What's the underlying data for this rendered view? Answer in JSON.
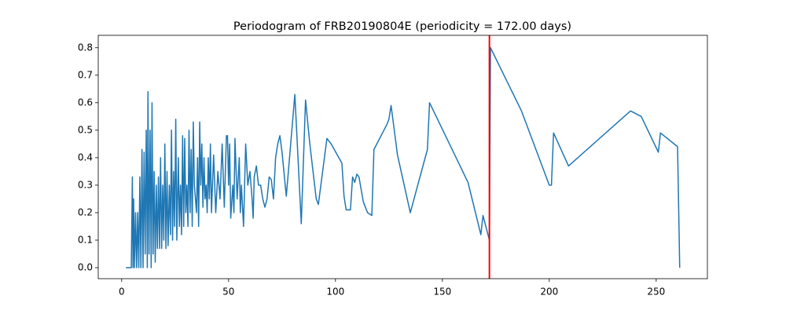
{
  "chart_data": {
    "type": "line",
    "title": "Periodogram of FRB20190804E (periodicity = 172.00 days)",
    "x": [
      2,
      4.5,
      5,
      5.3,
      5.6,
      6,
      6.5,
      7,
      7.5,
      8,
      8.5,
      9,
      9.5,
      10,
      10.5,
      11,
      11.5,
      12,
      12.3,
      12.8,
      13.3,
      13.8,
      14.2,
      14.7,
      15.2,
      15.7,
      16.2,
      16.7,
      17.2,
      17.7,
      18.2,
      18.7,
      19.2,
      19.7,
      20.2,
      20.7,
      21.2,
      21.7,
      22.3,
      22.8,
      23.3,
      23.8,
      24.3,
      24.8,
      25.3,
      25.8,
      26.5,
      27,
      27.5,
      28,
      28.5,
      29,
      29.5,
      30,
      30.5,
      31,
      31.5,
      32,
      32.5,
      33,
      33.5,
      34,
      34.5,
      35,
      35.5,
      36,
      36.5,
      37,
      37.5,
      38,
      38.5,
      39,
      39.5,
      40,
      40.5,
      41,
      41.5,
      42,
      43,
      44,
      45,
      46,
      47,
      48,
      49,
      49.5,
      50,
      50.5,
      51,
      52,
      52.5,
      53,
      54,
      55,
      55.5,
      56,
      57,
      58,
      59,
      60,
      61,
      61.5,
      62,
      63,
      64,
      65,
      66,
      67,
      68,
      69,
      70,
      71,
      72,
      73,
      74,
      75,
      77,
      81,
      84,
      86,
      88,
      91,
      92,
      96,
      98,
      103,
      104,
      105,
      107,
      108,
      109,
      110,
      111,
      113,
      115,
      117,
      118,
      124,
      125,
      126,
      129,
      135,
      143,
      144,
      162,
      168,
      169,
      172,
      172.5,
      187,
      200,
      201,
      202,
      209,
      238,
      243,
      251,
      252,
      260,
      261
    ],
    "series": [
      {
        "color": "#1f77b4",
        "values": [
          0,
          0,
          0.33,
          0,
          0.25,
          0,
          0.2,
          0,
          0.2,
          0,
          0.33,
          0,
          0.43,
          0,
          0.42,
          0.05,
          0.5,
          0,
          0.64,
          0.05,
          0.5,
          0,
          0.6,
          0.05,
          0.35,
          0.02,
          0.3,
          0.07,
          0.33,
          0.07,
          0.4,
          0.07,
          0.3,
          0.1,
          0.45,
          0.07,
          0.35,
          0.08,
          0.3,
          0.12,
          0.5,
          0.1,
          0.35,
          0.15,
          0.54,
          0.1,
          0.4,
          0.15,
          0.3,
          0.12,
          0.48,
          0.15,
          0.47,
          0.2,
          0.3,
          0.15,
          0.5,
          0.2,
          0.43,
          0.15,
          0.53,
          0.3,
          0.25,
          0.2,
          0.4,
          0.15,
          0.53,
          0.3,
          0.45,
          0.22,
          0.4,
          0.25,
          0.3,
          0.2,
          0.4,
          0.25,
          0.45,
          0.2,
          0.41,
          0.2,
          0.35,
          0.25,
          0.45,
          0.22,
          0.48,
          0.48,
          0.3,
          0.45,
          0.18,
          0.3,
          0.2,
          0.47,
          0.25,
          0.4,
          0.2,
          0.3,
          0.15,
          0.45,
          0.3,
          0.35,
          0.25,
          0.18,
          0.33,
          0.37,
          0.3,
          0.3,
          0.25,
          0.22,
          0.25,
          0.33,
          0.32,
          0.25,
          0.4,
          0.45,
          0.48,
          0.42,
          0.26,
          0.63,
          0.16,
          0.61,
          0.45,
          0.25,
          0.23,
          0.47,
          0.45,
          0.38,
          0.26,
          0.21,
          0.21,
          0.33,
          0.31,
          0.34,
          0.33,
          0.24,
          0.2,
          0.19,
          0.43,
          0.52,
          0.54,
          0.59,
          0.41,
          0.2,
          0.43,
          0.6,
          0.31,
          0.12,
          0.19,
          0.1,
          0.8,
          0.57,
          0.3,
          0.3,
          0.49,
          0.37,
          0.57,
          0.55,
          0.42,
          0.49,
          0.44,
          0
        ]
      }
    ],
    "vline": {
      "x": 172,
      "color": "#ff0000"
    },
    "xlim": [
      -10.95,
      273.95
    ],
    "ylim": [
      -0.04,
      0.845
    ],
    "xticks": [
      0,
      50,
      100,
      150,
      200,
      250
    ],
    "yticks": [
      {
        "value": 0,
        "label": "0.0"
      },
      0.1,
      0.2,
      0.3,
      0.4,
      0.5,
      0.6,
      0.7,
      0.8
    ]
  }
}
